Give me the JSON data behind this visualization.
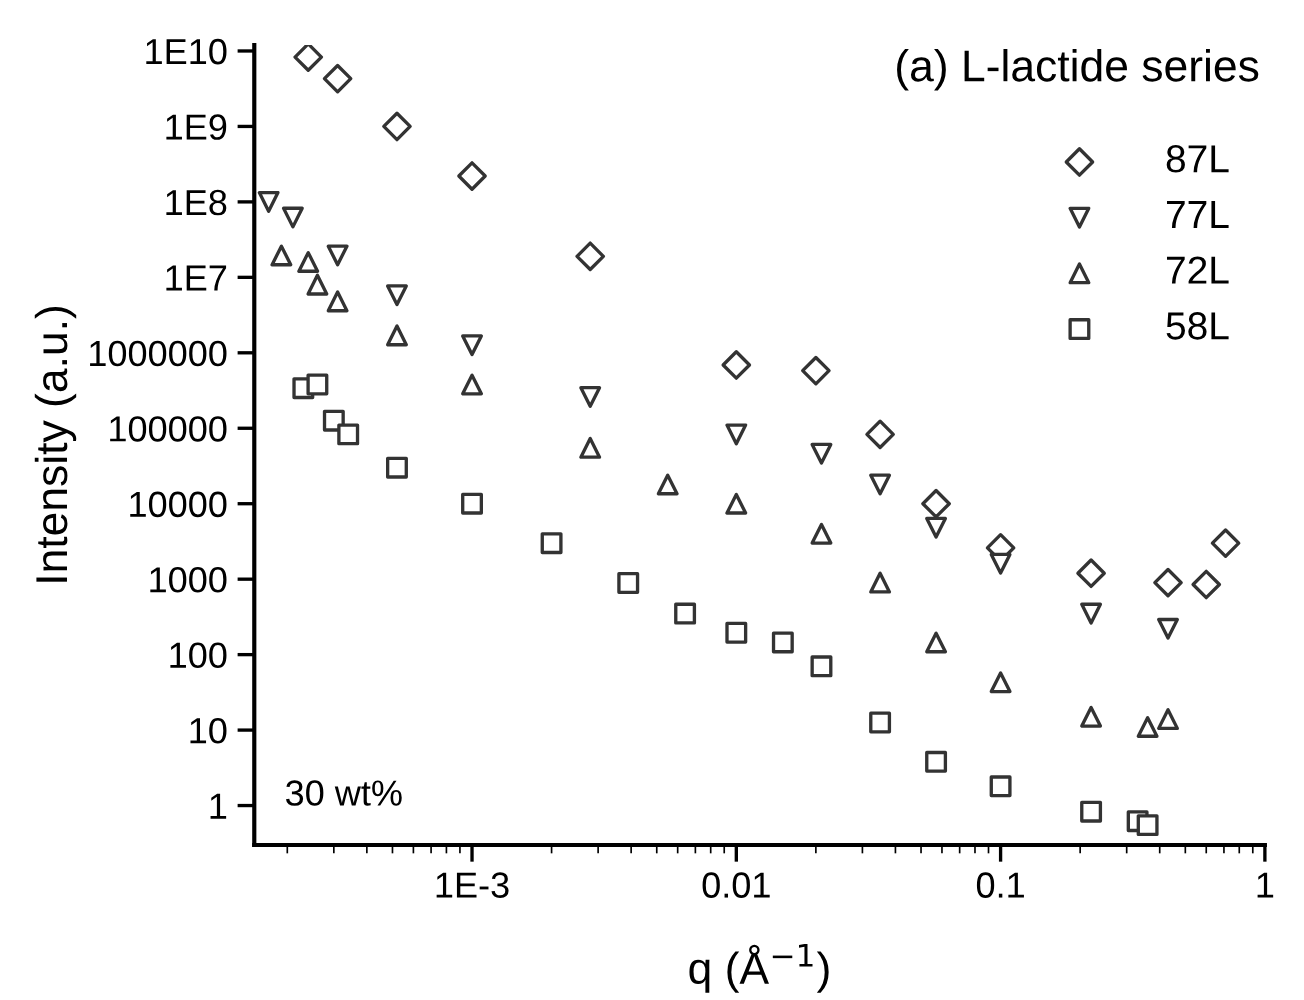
{
  "chart_data": {
    "type": "scatter",
    "xlabel": "q (Å$^{−1}$)",
    "ylabel": "Intensity (a.u.)",
    "log": "xy",
    "xlim": [
      0.00015,
      1
    ],
    "ylim": [
      0.3,
      12000000000
    ],
    "xticks": [
      {
        "value": 0.001,
        "label": "1E-3"
      },
      0.01,
      0.1,
      1
    ],
    "yticks": [
      1,
      10,
      100,
      1000,
      10000,
      100000,
      1000000,
      {
        "value": 10000000,
        "label": "1E7"
      },
      {
        "value": 100000000,
        "label": "1E8"
      },
      {
        "value": 1000000000,
        "label": "1E9"
      },
      {
        "value": 10000000000,
        "label": "1E10"
      }
    ],
    "grid": false,
    "legend": "top right",
    "annotations": [
      "(a) L-lactide series",
      "30 wt%"
    ],
    "series": [
      {
        "name": "87L",
        "color": "#333333",
        "marker": "diamond",
        "x": [
          0.00024,
          0.00031,
          0.00052,
          0.001,
          0.0028,
          0.01,
          0.02,
          0.035,
          0.057,
          0.1,
          0.22,
          0.43,
          0.6,
          0.71
        ],
        "values": [
          8300000000,
          4300000000,
          1000000000,
          220000000,
          19000000,
          690000,
          580000,
          83000,
          10000,
          2600,
          1200,
          900,
          850,
          3000
        ]
      },
      {
        "name": "77L",
        "color": "#333333",
        "marker": "triangle_down",
        "x": [
          0.00017,
          0.00021,
          0.00031,
          0.00052,
          0.001,
          0.0028,
          0.01,
          0.021,
          0.035,
          0.057,
          0.1,
          0.22,
          0.43
        ],
        "values": [
          100000000,
          62000000,
          19500000,
          5800000,
          1260000,
          260000,
          83000,
          46000,
          18000,
          4800,
          1600,
          350,
          220
        ]
      },
      {
        "name": "72L",
        "color": "#333333",
        "marker": "triangle",
        "x": [
          0.00019,
          0.00024,
          0.00026,
          0.00031,
          0.00052,
          0.001,
          0.0028,
          0.0055,
          0.01,
          0.021,
          0.035,
          0.057,
          0.1,
          0.22,
          0.36,
          0.43
        ],
        "values": [
          19500000,
          16000000,
          8000000,
          4800000,
          1700000,
          380000,
          55000,
          18000,
          10000,
          4000,
          900,
          145,
          43,
          15,
          11,
          14
        ]
      },
      {
        "name": "58L",
        "color": "#333333",
        "marker": "square",
        "x": [
          0.00023,
          0.00026,
          0.0003,
          0.00034,
          0.00052,
          0.001,
          0.002,
          0.0039,
          0.0064,
          0.01,
          0.015,
          0.021,
          0.035,
          0.057,
          0.1,
          0.22,
          0.33,
          0.36
        ],
        "values": [
          340000,
          380000,
          126000,
          83000,
          30000,
          10000,
          3000,
          890,
          350,
          195,
          145,
          70,
          12.6,
          3.8,
          1.8,
          0.83,
          0.62,
          0.55
        ]
      }
    ]
  }
}
